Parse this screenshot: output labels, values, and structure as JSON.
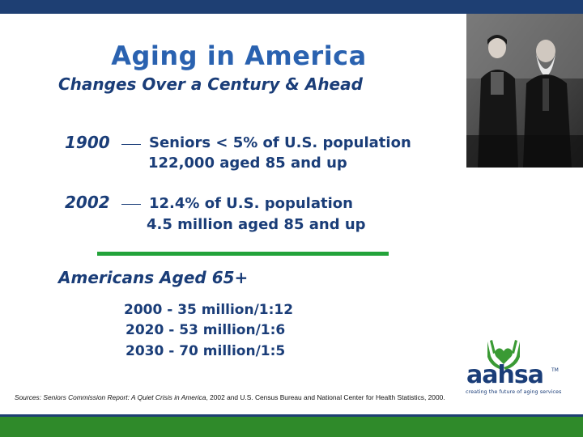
{
  "title": "Aging in America",
  "subtitle": "Changes Over a Century & Ahead",
  "facts": [
    {
      "year": "1900",
      "line1": "Seniors < 5% of U.S. population",
      "line2": "122,000 aged 85 and up"
    },
    {
      "year": "2002",
      "line1": "12.4% of U.S. population",
      "line2": "4.5 million aged 85 and up"
    }
  ],
  "section_title": "Americans Aged 65+",
  "projections": [
    "2000 - 35 million/1:12",
    "2020 - 53 million/1:6",
    "2030 - 70 million/1:5"
  ],
  "sources": {
    "prefix": "Sources: Seniors Commission Report: ",
    "italic_title": "A Quiet Crisis in America",
    "suffix": ", 2002 and U.S. Census Bureau and National Center for Health Statistics, 2000."
  },
  "logo": {
    "name": "aahsa",
    "tm": "TM",
    "tagline": "creating the future of aging services"
  },
  "colors": {
    "top_bar": "#1e3f73",
    "bottom_bar": "#2f8a2a",
    "title": "#2a62b0",
    "text": "#1a3d78",
    "rule": "#23a33a"
  },
  "icons": {
    "photo": "historic-elderly-couple-photo",
    "logo_mark": "hands-holding-heart-icon"
  }
}
